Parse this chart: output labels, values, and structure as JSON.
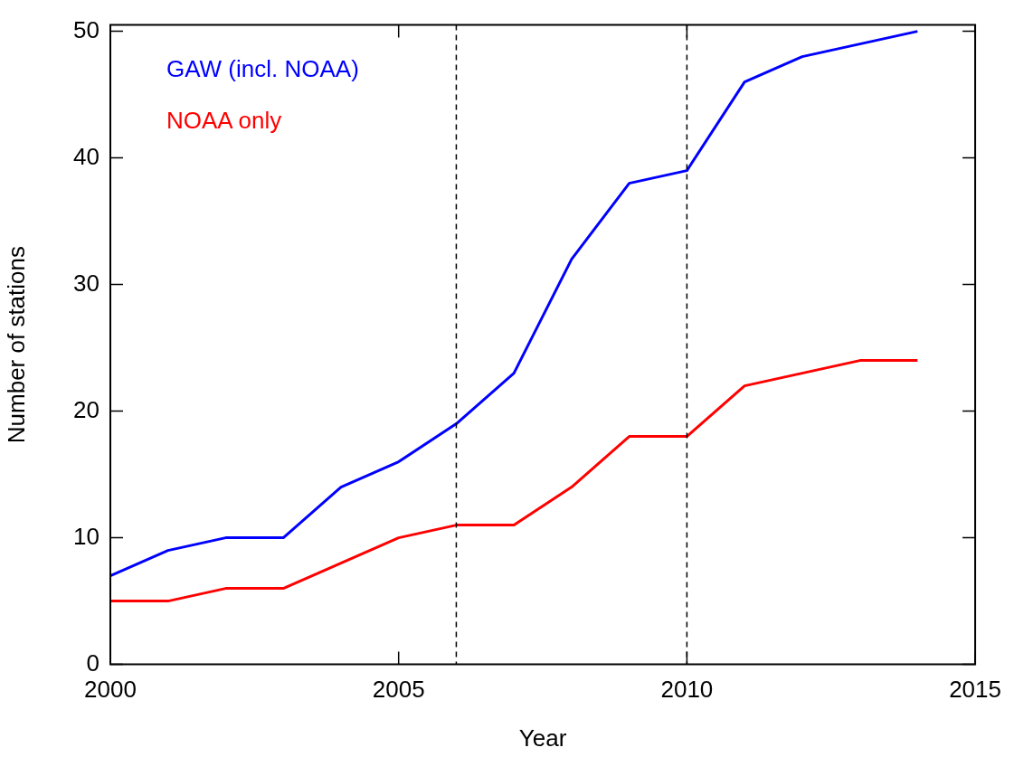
{
  "chart_data": {
    "type": "line",
    "xlabel": "Year",
    "ylabel": "Number of stations",
    "x": [
      2000,
      2001,
      2002,
      2003,
      2004,
      2005,
      2006,
      2007,
      2008,
      2009,
      2010,
      2011,
      2012,
      2013,
      2014
    ],
    "series": [
      {
        "name": "GAW (incl. NOAA)",
        "color": "#0000ff",
        "values": [
          7,
          9,
          10,
          10,
          14,
          16,
          19,
          23,
          32,
          38,
          39,
          46,
          48,
          49,
          50
        ]
      },
      {
        "name": "NOAA only",
        "color": "#ff0000",
        "values": [
          5,
          5,
          6,
          6,
          8,
          10,
          11,
          11,
          14,
          18,
          18,
          22,
          23,
          24,
          24
        ]
      }
    ],
    "xlim": [
      2000,
      2015
    ],
    "xticks": [
      2000,
      2005,
      2010,
      2015
    ],
    "ylim": [
      0,
      50.5
    ],
    "yticks": [
      0,
      10,
      20,
      30,
      40,
      50
    ],
    "ref_lines": [
      {
        "axis": "x",
        "value": 2006,
        "line_style": "dashed",
        "color": "#000000"
      },
      {
        "axis": "x",
        "value": 2010,
        "line_style": "dashed",
        "color": "#000000"
      }
    ],
    "legend": "top left",
    "grid": false,
    "marker": "none",
    "line_style": "solid"
  }
}
